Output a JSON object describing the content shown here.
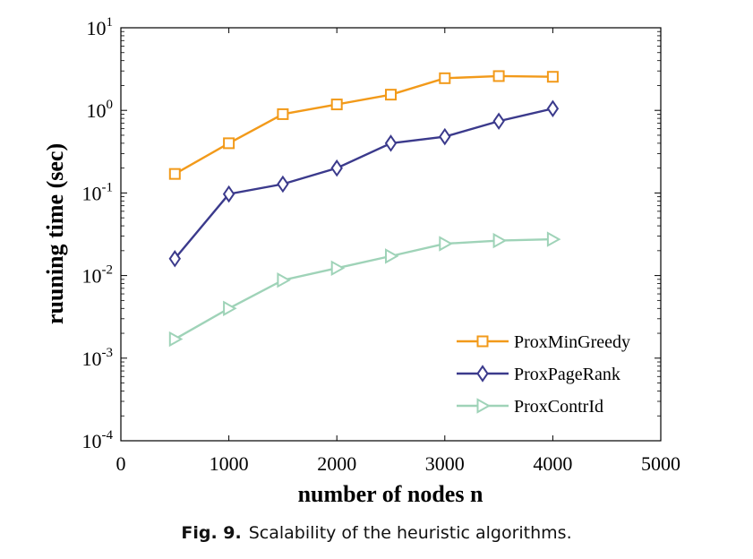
{
  "chart_data": {
    "type": "line",
    "title": "",
    "xlabel": "number of nodes n",
    "ylabel": "ruuning time (sec)",
    "xlim": [
      0,
      5000
    ],
    "xticks": [
      0,
      1000,
      2000,
      3000,
      4000,
      5000
    ],
    "x_tick_labels": [
      "0",
      "1000",
      "2000",
      "3000",
      "4000",
      "5000"
    ],
    "ylim": [
      0.0001,
      10
    ],
    "yscale": "log",
    "yticks": [
      {
        "value": 10,
        "base": "10",
        "exp": "1"
      },
      {
        "value": 1,
        "base": "10",
        "exp": "0"
      },
      {
        "value": 0.1,
        "base": "10",
        "exp": "-1"
      },
      {
        "value": 0.01,
        "base": "10",
        "exp": "-2"
      },
      {
        "value": 0.001,
        "base": "10",
        "exp": "-3"
      },
      {
        "value": 0.0001,
        "base": "10",
        "exp": "-4"
      }
    ],
    "grid": false,
    "legend_position": "bottom-right",
    "x": [
      500,
      1000,
      1500,
      2000,
      2500,
      3000,
      3500,
      4000
    ],
    "series": [
      {
        "name": "ProxMinGreedy",
        "color": "#f29a1a",
        "marker": "square",
        "values": [
          0.17,
          0.4,
          0.9,
          1.18,
          1.55,
          2.45,
          2.6,
          2.55
        ]
      },
      {
        "name": "ProxPageRank",
        "color": "#3b3a8c",
        "marker": "diamond",
        "values": [
          0.016,
          0.097,
          0.128,
          0.2,
          0.4,
          0.48,
          0.74,
          1.05
        ]
      },
      {
        "name": "ProxContrId",
        "color": "#9fd3b8",
        "marker": "triangle-right",
        "values": [
          0.0017,
          0.004,
          0.0088,
          0.0123,
          0.0172,
          0.0243,
          0.0265,
          0.0275
        ]
      }
    ]
  },
  "caption": {
    "label": "Fig. 9.",
    "text": "Scalability of the heuristic algorithms."
  }
}
